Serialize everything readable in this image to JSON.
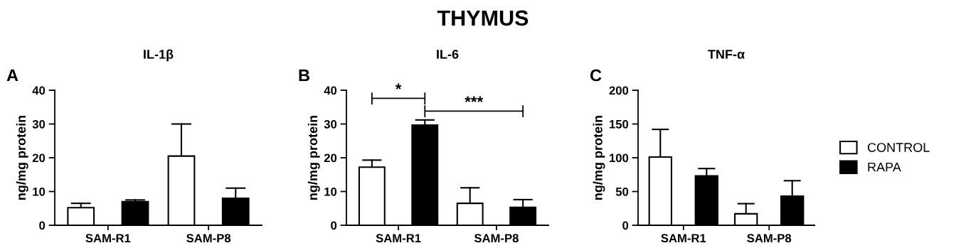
{
  "chart_data": [
    {
      "type": "bar",
      "title": "IL-1β",
      "ylabel": "ng/mg protein",
      "categories": [
        "SAM-R1",
        "SAM-P8"
      ],
      "ylim": [
        0,
        40
      ],
      "yticks": [
        0,
        10,
        20,
        30,
        40
      ],
      "annotations": [
        "THYMUS",
        "A"
      ],
      "series": [
        {
          "color": "#ffffff",
          "values": [
            5.2,
            20.5
          ],
          "errors": [
            [
              5.2,
              6.5
            ],
            [
              20.5,
              30
            ]
          ]
        },
        {
          "color": "#000000",
          "values": [
            7.0,
            8.0
          ],
          "errors": [
            [
              7.0,
              7.5
            ],
            [
              8.0,
              11
            ]
          ]
        }
      ]
    },
    {
      "type": "bar",
      "title": "IL-6",
      "ylabel": "ng/mg protein",
      "categories": [
        "SAM-R1",
        "SAM-P8"
      ],
      "ylim": [
        0,
        40
      ],
      "yticks": [
        0,
        10,
        20,
        30,
        40
      ],
      "annotations": [
        "B",
        "*",
        "***"
      ],
      "series": [
        {
          "color": "#ffffff",
          "values": [
            17.2,
            6.5
          ],
          "errors": [
            [
              17.2,
              19.3
            ],
            [
              6.5,
              11.1
            ]
          ]
        },
        {
          "color": "#000000",
          "values": [
            29.7,
            5.3
          ],
          "errors": [
            [
              29.7,
              31.2
            ],
            [
              5.3,
              7.6
            ]
          ]
        }
      ]
    },
    {
      "type": "bar",
      "title": "TNF-α",
      "ylabel": "ng/mg protein",
      "categories": [
        "SAM-R1",
        "SAM-P8"
      ],
      "ylim": [
        0,
        200
      ],
      "yticks": [
        0,
        50,
        100,
        150,
        200
      ],
      "annotations": [
        "C"
      ],
      "legend": "right",
      "series": [
        {
          "name": "CONTROL",
          "color": "#ffffff",
          "values": [
            101,
            17
          ],
          "errors": [
            [
              101,
              142
            ],
            [
              17,
              32
            ]
          ]
        },
        {
          "name": "RAPA",
          "color": "#000000",
          "values": [
            73,
            43
          ],
          "errors": [
            [
              73,
              84
            ],
            [
              43,
              66
            ]
          ]
        }
      ]
    }
  ]
}
